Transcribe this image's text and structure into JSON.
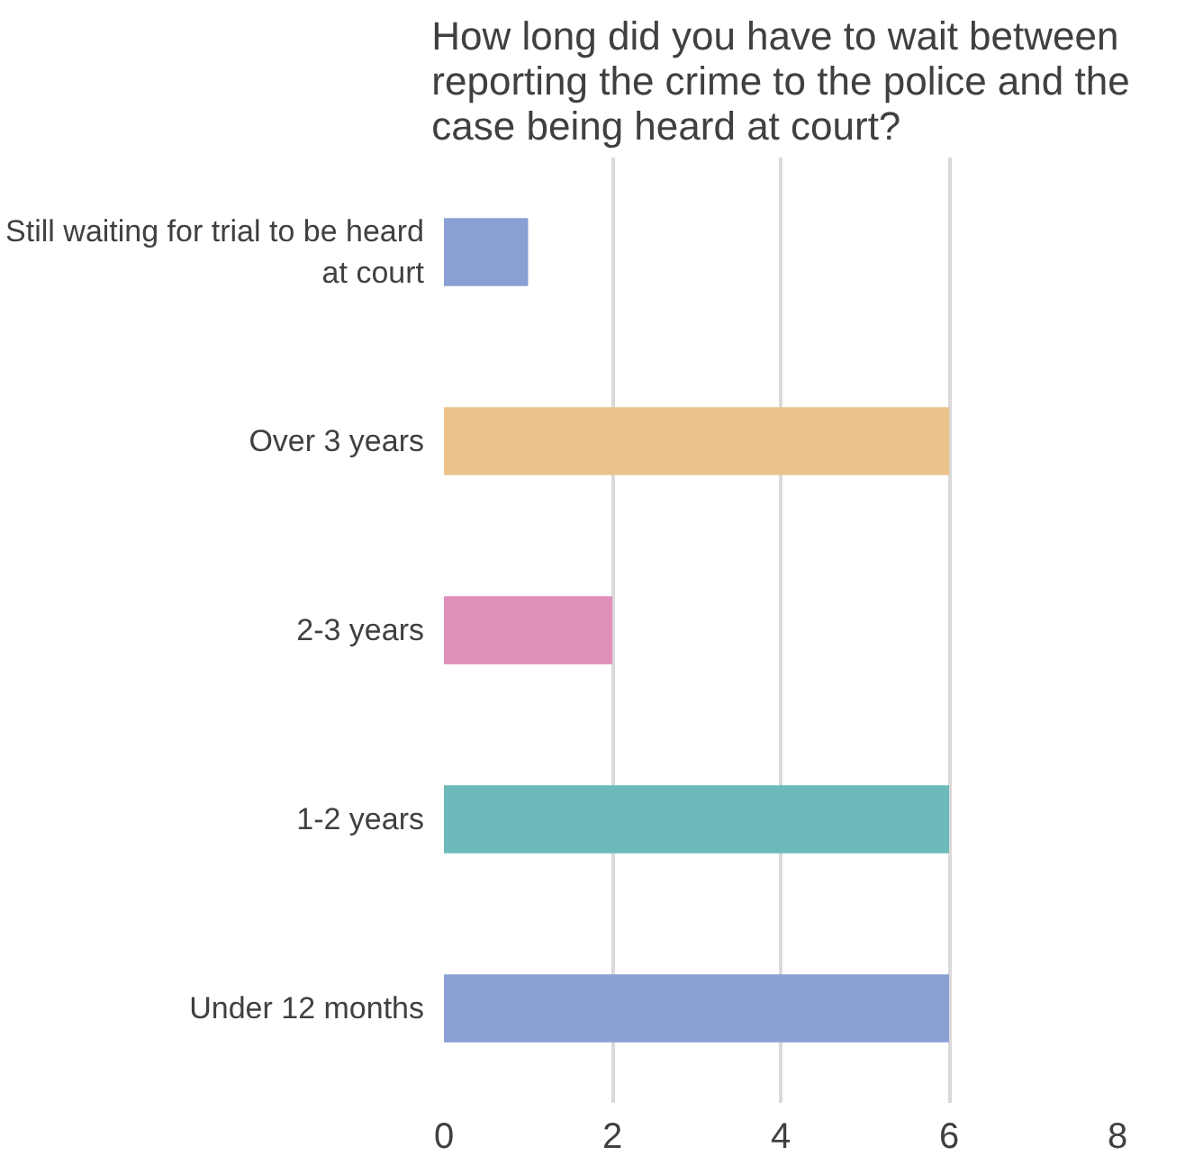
{
  "chart_data": {
    "type": "bar",
    "orientation": "horizontal",
    "title": "How long did you have to wait between reporting the crime to the police and the case being heard at court?",
    "categories": [
      "Still waiting for trial to be heard at court",
      "Over 3 years",
      "2-3 years",
      "1-2 years",
      "Under 12 months"
    ],
    "values": [
      1,
      6,
      2,
      6,
      6
    ],
    "colors": [
      "#8aa0d4",
      "#ecc28c",
      "#df8fb8",
      "#6cbaba",
      "#8aa0d4"
    ],
    "xlim": [
      0,
      8
    ],
    "xticks": [
      0,
      2,
      4,
      6,
      8
    ],
    "grid": "x"
  }
}
